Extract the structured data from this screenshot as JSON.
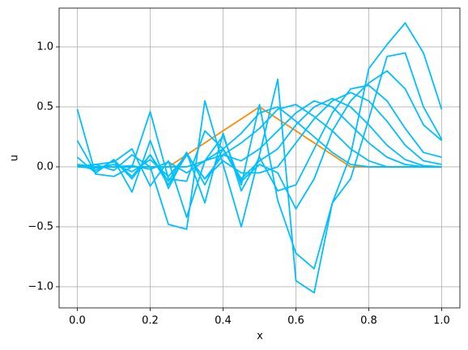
{
  "chart_data": {
    "type": "line",
    "xlabel": "x",
    "ylabel": "u",
    "x": [
      0,
      0.05,
      0.1,
      0.15,
      0.2,
      0.25,
      0.3,
      0.35,
      0.4,
      0.45,
      0.5,
      0.55,
      0.6,
      0.65,
      0.7,
      0.75,
      0.8,
      0.85,
      0.9,
      0.95,
      1
    ],
    "series": [
      {
        "color": "#ff8c00",
        "values": [
          0,
          0,
          0,
          0,
          0,
          0,
          0.1,
          0.2,
          0.3,
          0.4,
          0.5,
          0.4,
          0.3,
          0.2,
          0.1,
          0,
          0,
          0,
          0,
          0,
          0
        ]
      },
      {
        "color": "#00bfff",
        "values": [
          0.02,
          0,
          0,
          0,
          0,
          0,
          0,
          0.05,
          0.15,
          0.28,
          0.45,
          0.5,
          0.38,
          0.25,
          0.12,
          0.02,
          0,
          0,
          0,
          0,
          0
        ]
      },
      {
        "color": "#00bfff",
        "values": [
          0.01,
          0,
          0,
          0.01,
          -0.02,
          0.04,
          -0.05,
          0.05,
          0.1,
          0.2,
          0.32,
          0.48,
          0.52,
          0.42,
          0.3,
          0.15,
          0.05,
          0,
          0,
          0,
          0
        ]
      },
      {
        "color": "#00bfff",
        "values": [
          0,
          -0.01,
          0.02,
          -0.04,
          0.06,
          -0.08,
          0.1,
          -0.1,
          0.1,
          0.05,
          0.15,
          0.3,
          0.45,
          0.55,
          0.5,
          0.35,
          0.2,
          0.08,
          0.02,
          0,
          0
        ]
      },
      {
        "color": "#00bfff",
        "values": [
          0.02,
          -0.03,
          0.05,
          -0.08,
          0.1,
          -0.12,
          0.12,
          -0.15,
          0.15,
          -0.1,
          0.05,
          0.15,
          0.35,
          0.5,
          0.57,
          0.5,
          0.35,
          0.18,
          0.06,
          0.01,
          0
        ]
      },
      {
        "color": "#00bfff",
        "values": [
          0.08,
          -0.05,
          0.06,
          -0.1,
          0.1,
          -0.15,
          0.1,
          -0.1,
          0.05,
          -0.05,
          -0.05,
          0,
          0.2,
          0.4,
          0.55,
          0.62,
          0.55,
          0.38,
          0.18,
          0.05,
          0.02
        ]
      },
      {
        "color": "#00bfff",
        "values": [
          0.22,
          -0.05,
          0.06,
          -0.21,
          0.22,
          -0.18,
          0.12,
          -0.3,
          0.28,
          -0.2,
          0.08,
          -0.2,
          -0.15,
          0.15,
          0.45,
          0.65,
          0.68,
          0.55,
          0.32,
          0.12,
          0.08
        ]
      },
      {
        "color": "#00bfff",
        "values": [
          0.48,
          -0.06,
          -0.08,
          0,
          0.46,
          -0.1,
          -0.12,
          0.3,
          0.15,
          -0.12,
          0.02,
          -0.05,
          -0.35,
          -0.1,
          0.3,
          0.55,
          0.7,
          0.8,
          0.65,
          0.35,
          0.22
        ]
      },
      {
        "color": "#00bfff",
        "values": [
          0,
          0.02,
          0.04,
          0.15,
          -0.16,
          0.05,
          -0.42,
          0.05,
          0.26,
          -0.15,
          0.52,
          -0.28,
          -0.72,
          -0.85,
          -0.3,
          -0.1,
          0.4,
          0.92,
          0.95,
          0.5,
          0.23
        ]
      },
      {
        "color": "#00bfff",
        "values": [
          0,
          0.02,
          -0.03,
          0.1,
          0,
          -0.48,
          -0.52,
          0.55,
          0.02,
          -0.5,
          0.1,
          0.73,
          -0.95,
          -1.05,
          -0.3,
          0.1,
          0.82,
          1.02,
          1.2,
          0.95,
          0.48
        ]
      }
    ],
    "xlim": [
      -0.05,
      1.05
    ],
    "ylim": [
      -1.176,
      1.324
    ],
    "xticks": [
      {
        "value": 0,
        "label": "0.0"
      },
      {
        "value": 0.2,
        "label": "0.2"
      },
      {
        "value": 0.4,
        "label": "0.4"
      },
      {
        "value": 0.6,
        "label": "0.6"
      },
      {
        "value": 0.8,
        "label": "0.8"
      },
      {
        "value": 1,
        "label": "1.0"
      }
    ],
    "yticks": [
      {
        "value": -1,
        "label": "−1.0"
      },
      {
        "value": -0.5,
        "label": "−0.5"
      },
      {
        "value": 0,
        "label": "0.0"
      },
      {
        "value": 0.5,
        "label": "0.5"
      },
      {
        "value": 1,
        "label": "1.0"
      }
    ],
    "grid": true
  }
}
